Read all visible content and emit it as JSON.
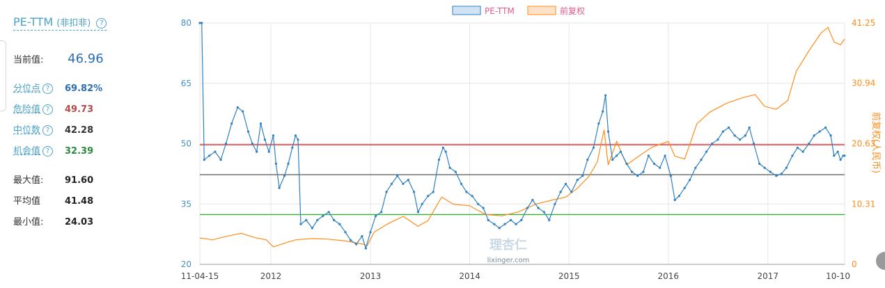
{
  "panel": {
    "title": "PE-TTM",
    "title_sub": "(非扣非)",
    "current_label": "当前值:",
    "current_value": "46.96",
    "stats": [
      {
        "label": "分位点",
        "value": "69.82%",
        "link": true,
        "color": "#2a6db5"
      },
      {
        "label": "危险值",
        "value": "49.73",
        "link": true,
        "color": "#b54a4a"
      },
      {
        "label": "中位数",
        "value": "42.28",
        "link": true,
        "color": "#333333"
      },
      {
        "label": "机会值",
        "value": "32.39",
        "link": true,
        "color": "#2e8a3e"
      },
      {
        "label": "最大值:",
        "value": "91.60",
        "link": false,
        "color": "#222222"
      },
      {
        "label": "平均值",
        "value": "41.48",
        "link": false,
        "color": "#222222"
      },
      {
        "label": "最小值:",
        "value": "24.03",
        "link": false,
        "color": "#222222"
      }
    ]
  },
  "watermark": {
    "logo": "理杏仁",
    "url": "lixinger.com"
  },
  "chart_data": {
    "type": "line",
    "legend": [
      "PE-TTM",
      "前复权"
    ],
    "ylabel_right": "前复权(人民币)",
    "yleft_ticks": [
      "80",
      "65",
      "50",
      "35",
      "20"
    ],
    "yright_ticks": [
      "41.25",
      "30.94",
      "20.63",
      "10.31",
      "0"
    ],
    "yleft_range": [
      20,
      80
    ],
    "yright_range": [
      0,
      41.25
    ],
    "x_ticks": [
      "11-04-15",
      "2012",
      "2013",
      "2014",
      "2015",
      "2016",
      "2017",
      "10-10"
    ],
    "x_range": [
      "2011-04-15",
      "2017-10-10"
    ],
    "reference_lines": [
      {
        "name": "危险值",
        "value": 49.73,
        "color": "#e02020"
      },
      {
        "name": "中位数",
        "value": 42.28,
        "color": "#555555"
      },
      {
        "name": "机会值",
        "value": 32.39,
        "color": "#22b822"
      }
    ],
    "series": [
      {
        "name": "PE-TTM",
        "axis": "left",
        "color": "#2f7fbf",
        "points": [
          [
            "2011-04-15",
            80
          ],
          [
            "2011-04-22",
            80
          ],
          [
            "2011-05-01",
            46
          ],
          [
            "2011-05-20",
            47
          ],
          [
            "2011-06-10",
            48
          ],
          [
            "2011-07-01",
            46
          ],
          [
            "2011-07-20",
            50
          ],
          [
            "2011-08-10",
            55
          ],
          [
            "2011-09-01",
            59
          ],
          [
            "2011-09-20",
            58
          ],
          [
            "2011-10-10",
            53
          ],
          [
            "2011-10-25",
            50
          ],
          [
            "2011-11-10",
            48
          ],
          [
            "2011-11-25",
            55
          ],
          [
            "2011-12-10",
            51
          ],
          [
            "2011-12-25",
            48
          ],
          [
            "2012-01-10",
            52
          ],
          [
            "2012-01-20",
            45
          ],
          [
            "2012-02-01",
            39
          ],
          [
            "2012-02-20",
            42
          ],
          [
            "2012-03-05",
            45
          ],
          [
            "2012-03-20",
            49
          ],
          [
            "2012-04-01",
            52
          ],
          [
            "2012-04-10",
            51
          ],
          [
            "2012-04-20",
            30
          ],
          [
            "2012-05-10",
            31
          ],
          [
            "2012-06-01",
            29
          ],
          [
            "2012-06-20",
            31
          ],
          [
            "2012-07-10",
            32
          ],
          [
            "2012-08-01",
            33
          ],
          [
            "2012-08-20",
            31
          ],
          [
            "2012-09-10",
            30
          ],
          [
            "2012-10-01",
            28
          ],
          [
            "2012-10-20",
            26
          ],
          [
            "2012-11-10",
            25
          ],
          [
            "2012-12-01",
            27
          ],
          [
            "2012-12-15",
            24
          ],
          [
            "2013-01-01",
            28
          ],
          [
            "2013-01-20",
            32
          ],
          [
            "2013-02-10",
            33
          ],
          [
            "2013-03-01",
            38
          ],
          [
            "2013-03-20",
            40
          ],
          [
            "2013-04-10",
            42
          ],
          [
            "2013-05-01",
            40
          ],
          [
            "2013-05-20",
            41
          ],
          [
            "2013-06-10",
            38
          ],
          [
            "2013-06-25",
            33
          ],
          [
            "2013-07-10",
            35
          ],
          [
            "2013-08-01",
            37
          ],
          [
            "2013-08-20",
            38
          ],
          [
            "2013-09-10",
            46
          ],
          [
            "2013-09-25",
            49
          ],
          [
            "2013-10-05",
            48
          ],
          [
            "2013-10-20",
            44
          ],
          [
            "2013-11-10",
            43
          ],
          [
            "2013-12-01",
            40
          ],
          [
            "2013-12-20",
            38
          ],
          [
            "2014-01-10",
            37
          ],
          [
            "2014-02-01",
            35
          ],
          [
            "2014-02-20",
            34
          ],
          [
            "2014-03-10",
            31
          ],
          [
            "2014-04-01",
            30
          ],
          [
            "2014-04-20",
            29
          ],
          [
            "2014-05-10",
            30
          ],
          [
            "2014-06-01",
            31
          ],
          [
            "2014-06-20",
            30
          ],
          [
            "2014-07-10",
            31
          ],
          [
            "2014-08-01",
            34
          ],
          [
            "2014-08-20",
            36
          ],
          [
            "2014-09-10",
            34
          ],
          [
            "2014-10-01",
            33
          ],
          [
            "2014-10-20",
            31
          ],
          [
            "2014-11-10",
            35
          ],
          [
            "2014-12-01",
            38
          ],
          [
            "2014-12-20",
            40
          ],
          [
            "2015-01-10",
            38
          ],
          [
            "2015-02-01",
            41
          ],
          [
            "2015-02-20",
            42
          ],
          [
            "2015-03-10",
            46
          ],
          [
            "2015-04-01",
            49
          ],
          [
            "2015-04-20",
            55
          ],
          [
            "2015-05-05",
            58
          ],
          [
            "2015-05-15",
            62
          ],
          [
            "2015-05-25",
            53
          ],
          [
            "2015-06-10",
            46
          ],
          [
            "2015-06-25",
            47
          ],
          [
            "2015-07-10",
            48
          ],
          [
            "2015-08-01",
            45
          ],
          [
            "2015-08-20",
            43
          ],
          [
            "2015-09-10",
            42
          ],
          [
            "2015-10-01",
            43
          ],
          [
            "2015-10-20",
            47
          ],
          [
            "2015-11-10",
            45
          ],
          [
            "2015-12-01",
            44
          ],
          [
            "2015-12-20",
            47
          ],
          [
            "2016-01-10",
            42
          ],
          [
            "2016-01-25",
            36
          ],
          [
            "2016-02-10",
            37
          ],
          [
            "2016-03-01",
            39
          ],
          [
            "2016-03-20",
            41
          ],
          [
            "2016-04-10",
            44
          ],
          [
            "2016-05-01",
            46
          ],
          [
            "2016-05-20",
            48
          ],
          [
            "2016-06-10",
            50
          ],
          [
            "2016-07-01",
            51
          ],
          [
            "2016-07-20",
            53
          ],
          [
            "2016-08-10",
            54
          ],
          [
            "2016-09-01",
            52
          ],
          [
            "2016-09-20",
            51
          ],
          [
            "2016-10-10",
            52
          ],
          [
            "2016-10-25",
            54
          ],
          [
            "2016-11-10",
            50
          ],
          [
            "2016-12-01",
            45
          ],
          [
            "2016-12-20",
            44
          ],
          [
            "2017-01-10",
            43
          ],
          [
            "2017-02-01",
            42
          ],
          [
            "2017-02-20",
            42.5
          ],
          [
            "2017-03-10",
            44
          ],
          [
            "2017-04-01",
            47
          ],
          [
            "2017-04-20",
            49
          ],
          [
            "2017-05-10",
            48
          ],
          [
            "2017-06-01",
            50
          ],
          [
            "2017-06-20",
            52
          ],
          [
            "2017-07-10",
            53
          ],
          [
            "2017-08-01",
            54
          ],
          [
            "2017-08-20",
            52
          ],
          [
            "2017-09-01",
            47
          ],
          [
            "2017-09-15",
            48
          ],
          [
            "2017-09-25",
            46
          ],
          [
            "2017-10-05",
            47
          ],
          [
            "2017-10-10",
            47
          ]
        ]
      },
      {
        "name": "前复权",
        "axis": "right",
        "color": "#ff8c1a",
        "points": [
          [
            "2011-04-15",
            4.5
          ],
          [
            "2011-06-01",
            4.2
          ],
          [
            "2011-08-01",
            4.9
          ],
          [
            "2011-09-15",
            5.3
          ],
          [
            "2011-11-01",
            4.6
          ],
          [
            "2011-12-15",
            4.2
          ],
          [
            "2012-01-10",
            3.0
          ],
          [
            "2012-02-20",
            3.6
          ],
          [
            "2012-04-01",
            4.2
          ],
          [
            "2012-06-01",
            4.4
          ],
          [
            "2012-08-01",
            4.3
          ],
          [
            "2012-10-01",
            4.0
          ],
          [
            "2012-12-01",
            3.5
          ],
          [
            "2012-12-20",
            3.2
          ],
          [
            "2013-01-15",
            5.5
          ],
          [
            "2013-03-01",
            6.8
          ],
          [
            "2013-05-01",
            8.2
          ],
          [
            "2013-06-25",
            6.5
          ],
          [
            "2013-08-01",
            7.5
          ],
          [
            "2013-09-20",
            11.5
          ],
          [
            "2013-11-01",
            10.3
          ],
          [
            "2014-01-01",
            10.0
          ],
          [
            "2014-03-01",
            8.5
          ],
          [
            "2014-05-01",
            8.3
          ],
          [
            "2014-07-01",
            9.0
          ],
          [
            "2014-09-01",
            10.3
          ],
          [
            "2014-11-01",
            11.0
          ],
          [
            "2014-12-20",
            11.5
          ],
          [
            "2015-02-01",
            13.0
          ],
          [
            "2015-03-15",
            15.0
          ],
          [
            "2015-04-15",
            17.5
          ],
          [
            "2015-05-10",
            23.0
          ],
          [
            "2015-05-25",
            17.0
          ],
          [
            "2015-06-25",
            21.0
          ],
          [
            "2015-08-01",
            17.0
          ],
          [
            "2015-09-15",
            18.5
          ],
          [
            "2015-11-01",
            20.0
          ],
          [
            "2016-01-01",
            21.0
          ],
          [
            "2016-01-25",
            18.5
          ],
          [
            "2016-03-01",
            18.0
          ],
          [
            "2016-04-15",
            24.0
          ],
          [
            "2016-06-01",
            26.0
          ],
          [
            "2016-08-01",
            27.5
          ],
          [
            "2016-10-01",
            28.5
          ],
          [
            "2016-11-15",
            29.0
          ],
          [
            "2016-12-20",
            27.0
          ],
          [
            "2017-02-01",
            26.5
          ],
          [
            "2017-03-15",
            28.0
          ],
          [
            "2017-04-15",
            33.0
          ],
          [
            "2017-06-01",
            36.5
          ],
          [
            "2017-07-15",
            39.5
          ],
          [
            "2017-08-10",
            40.5
          ],
          [
            "2017-09-01",
            38.0
          ],
          [
            "2017-09-25",
            37.5
          ],
          [
            "2017-10-10",
            38.5
          ]
        ]
      }
    ]
  }
}
